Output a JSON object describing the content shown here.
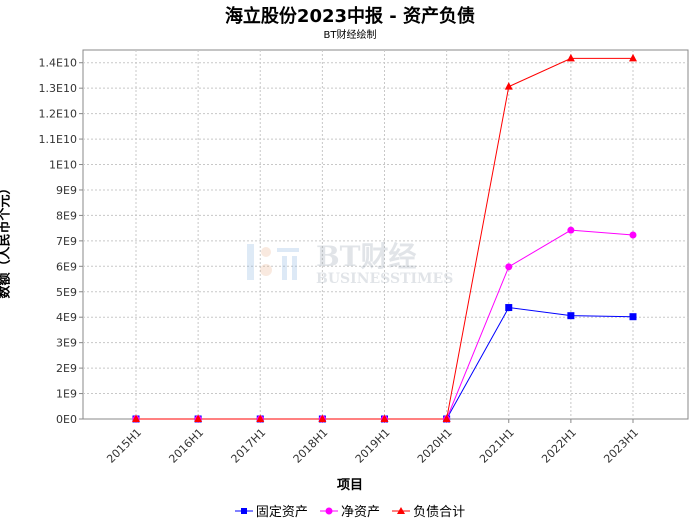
{
  "chart_data": {
    "type": "line",
    "title": "海立股份2023中报 - 资产负债",
    "subtitle": "BT财经绘制",
    "xlabel": "项目",
    "ylabel": "数额（人民币个元）",
    "categories": [
      "2015H1",
      "2016H1",
      "2017H1",
      "2018H1",
      "2019H1",
      "2020H1",
      "2021H1",
      "2022H1",
      "2023H1"
    ],
    "yticks": [
      "0E0",
      "1E9",
      "2E9",
      "3E9",
      "4E9",
      "5E9",
      "6E9",
      "7E9",
      "8E9",
      "9E9",
      "1E10",
      "1.1E10",
      "1.2E10",
      "1.3E10",
      "1.4E10"
    ],
    "ylim": [
      0,
      14500000000
    ],
    "grid": true,
    "legend_position": "bottom",
    "series": [
      {
        "name": "固定资产",
        "color": "#0000ff",
        "marker": "square",
        "values": [
          0,
          0,
          0,
          0,
          0,
          0,
          4380000000,
          4060000000,
          4020000000
        ]
      },
      {
        "name": "净资产",
        "color": "#ff00ff",
        "marker": "circle",
        "values": [
          0,
          0,
          0,
          0,
          0,
          0,
          5980000000,
          7420000000,
          7230000000
        ]
      },
      {
        "name": "负债合计",
        "color": "#ff0000",
        "marker": "triangle",
        "values": [
          0,
          0,
          0,
          0,
          0,
          0,
          13060000000,
          14170000000,
          14170000000
        ]
      }
    ]
  },
  "watermark": {
    "main": "BT财经",
    "sub": "BUSINESSTIMES"
  }
}
